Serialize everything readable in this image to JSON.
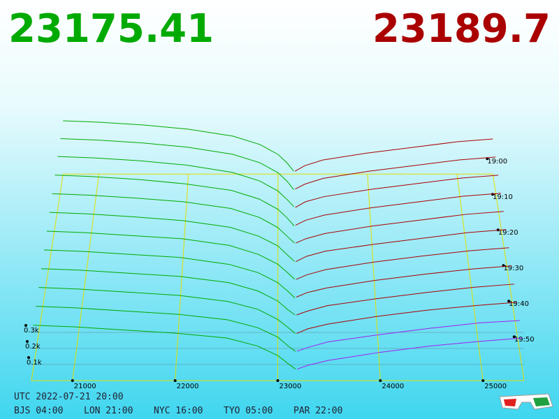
{
  "chart_data": {
    "type": "depth3d",
    "bid_price": "23175.41",
    "ask_price": "23189.7",
    "bid_color": "#00aa00",
    "ask_color": "#aa0000",
    "front_ask_color": "#a020f0",
    "grid_color": "#e0e000",
    "xlim": [
      20600,
      25400
    ],
    "xticks": [
      21000,
      22000,
      23000,
      24000,
      25000
    ],
    "ylim": [
      0,
      400
    ],
    "yticks": [
      {
        "value": 100,
        "label": "0.1k"
      },
      {
        "value": 200,
        "label": "0.2k"
      },
      {
        "value": 300,
        "label": "0.3k"
      }
    ],
    "zlim": [
      0,
      58
    ],
    "zticks": [
      {
        "value": 0,
        "label": "19:00"
      },
      {
        "value": 10,
        "label": "19:10"
      },
      {
        "value": 20,
        "label": "19:20"
      },
      {
        "value": 30,
        "label": "19:30"
      },
      {
        "value": 40,
        "label": "19:40"
      },
      {
        "value": 50,
        "label": "19:50"
      }
    ],
    "bid_prices": [
      23175.41,
      23100,
      23000,
      22800,
      22500,
      22000,
      21500,
      21000,
      20600
    ],
    "ask_prices": [
      23189.7,
      23300,
      23500,
      24000,
      24500,
      25000,
      25400
    ],
    "series": [
      {
        "z": 0,
        "bids": [
          20,
          80,
          140,
          210,
          270,
          320,
          350,
          370,
          380
        ],
        "asks": [
          20,
          60,
          100,
          150,
          190,
          230,
          250
        ]
      },
      {
        "z": 5,
        "bids": [
          15,
          75,
          135,
          205,
          265,
          315,
          345,
          365,
          375
        ],
        "asks": [
          20,
          55,
          95,
          145,
          185,
          225,
          245
        ]
      },
      {
        "z": 10,
        "bids": [
          20,
          70,
          130,
          200,
          260,
          310,
          340,
          360,
          370
        ],
        "asks": [
          15,
          55,
          90,
          140,
          180,
          220,
          240
        ]
      },
      {
        "z": 15,
        "bids": [
          10,
          65,
          125,
          195,
          255,
          300,
          330,
          350,
          360
        ],
        "asks": [
          15,
          50,
          85,
          135,
          175,
          215,
          235
        ]
      },
      {
        "z": 20,
        "bids": [
          15,
          60,
          120,
          190,
          250,
          295,
          320,
          340,
          350
        ],
        "asks": [
          15,
          45,
          80,
          130,
          170,
          210,
          230
        ]
      },
      {
        "z": 25,
        "bids": [
          10,
          55,
          115,
          180,
          240,
          285,
          310,
          330,
          340
        ],
        "asks": [
          10,
          45,
          80,
          125,
          165,
          205,
          225
        ]
      },
      {
        "z": 30,
        "bids": [
          10,
          55,
          110,
          175,
          235,
          280,
          300,
          320,
          330
        ],
        "asks": [
          10,
          40,
          75,
          125,
          165,
          200,
          220
        ]
      },
      {
        "z": 35,
        "bids": [
          5,
          50,
          105,
          170,
          225,
          270,
          290,
          310,
          320
        ],
        "asks": [
          10,
          40,
          70,
          120,
          160,
          195,
          215
        ]
      },
      {
        "z": 40,
        "bids": [
          10,
          45,
          100,
          165,
          220,
          260,
          280,
          300,
          310
        ],
        "asks": [
          10,
          35,
          70,
          115,
          155,
          190,
          210
        ]
      },
      {
        "z": 45,
        "bids": [
          5,
          45,
          95,
          160,
          210,
          250,
          270,
          290,
          300
        ],
        "asks": [
          5,
          35,
          65,
          115,
          155,
          185,
          205
        ]
      },
      {
        "z": 50,
        "bids": [
          5,
          40,
          95,
          155,
          205,
          240,
          260,
          280,
          290
        ],
        "asks": [
          5,
          30,
          65,
          110,
          150,
          185,
          200
        ]
      },
      {
        "z": 55,
        "bids": [
          5,
          40,
          90,
          150,
          200,
          230,
          250,
          270,
          280
        ],
        "asks": [
          5,
          30,
          60,
          110,
          150,
          180,
          200
        ]
      }
    ],
    "footer": {
      "utc": "UTC 2022-07-21 20:00",
      "zones": [
        "BJS 04:00",
        "LON 21:00",
        "NYC 16:00",
        "TYO 05:00",
        "PAR 22:00"
      ]
    }
  }
}
